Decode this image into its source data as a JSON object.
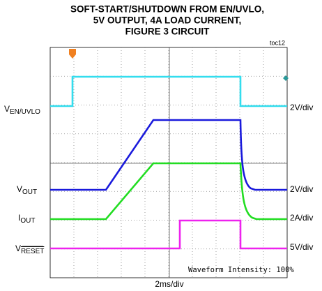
{
  "title": [
    "SOFT-START/SHUTDOWN FROM EN/UVLO,",
    "5V OUTPUT, 4A LOAD CURRENT,",
    "FIGURE 3 CIRCUIT"
  ],
  "figure_id": "toc12",
  "channels": [
    {
      "symbol": "V",
      "subscript": "EN/UVLO",
      "scale": "2V/div"
    },
    {
      "symbol": "V",
      "subscript": "OUT",
      "scale": "2V/div"
    },
    {
      "symbol": "I",
      "subscript": "OUT",
      "scale": "2A/div"
    },
    {
      "symbol": "V",
      "subscript": "RESET",
      "scale": "5V/div"
    }
  ],
  "time_scale": "2ms/div",
  "intensity_note": "Waveform Intensity: 100%"
}
